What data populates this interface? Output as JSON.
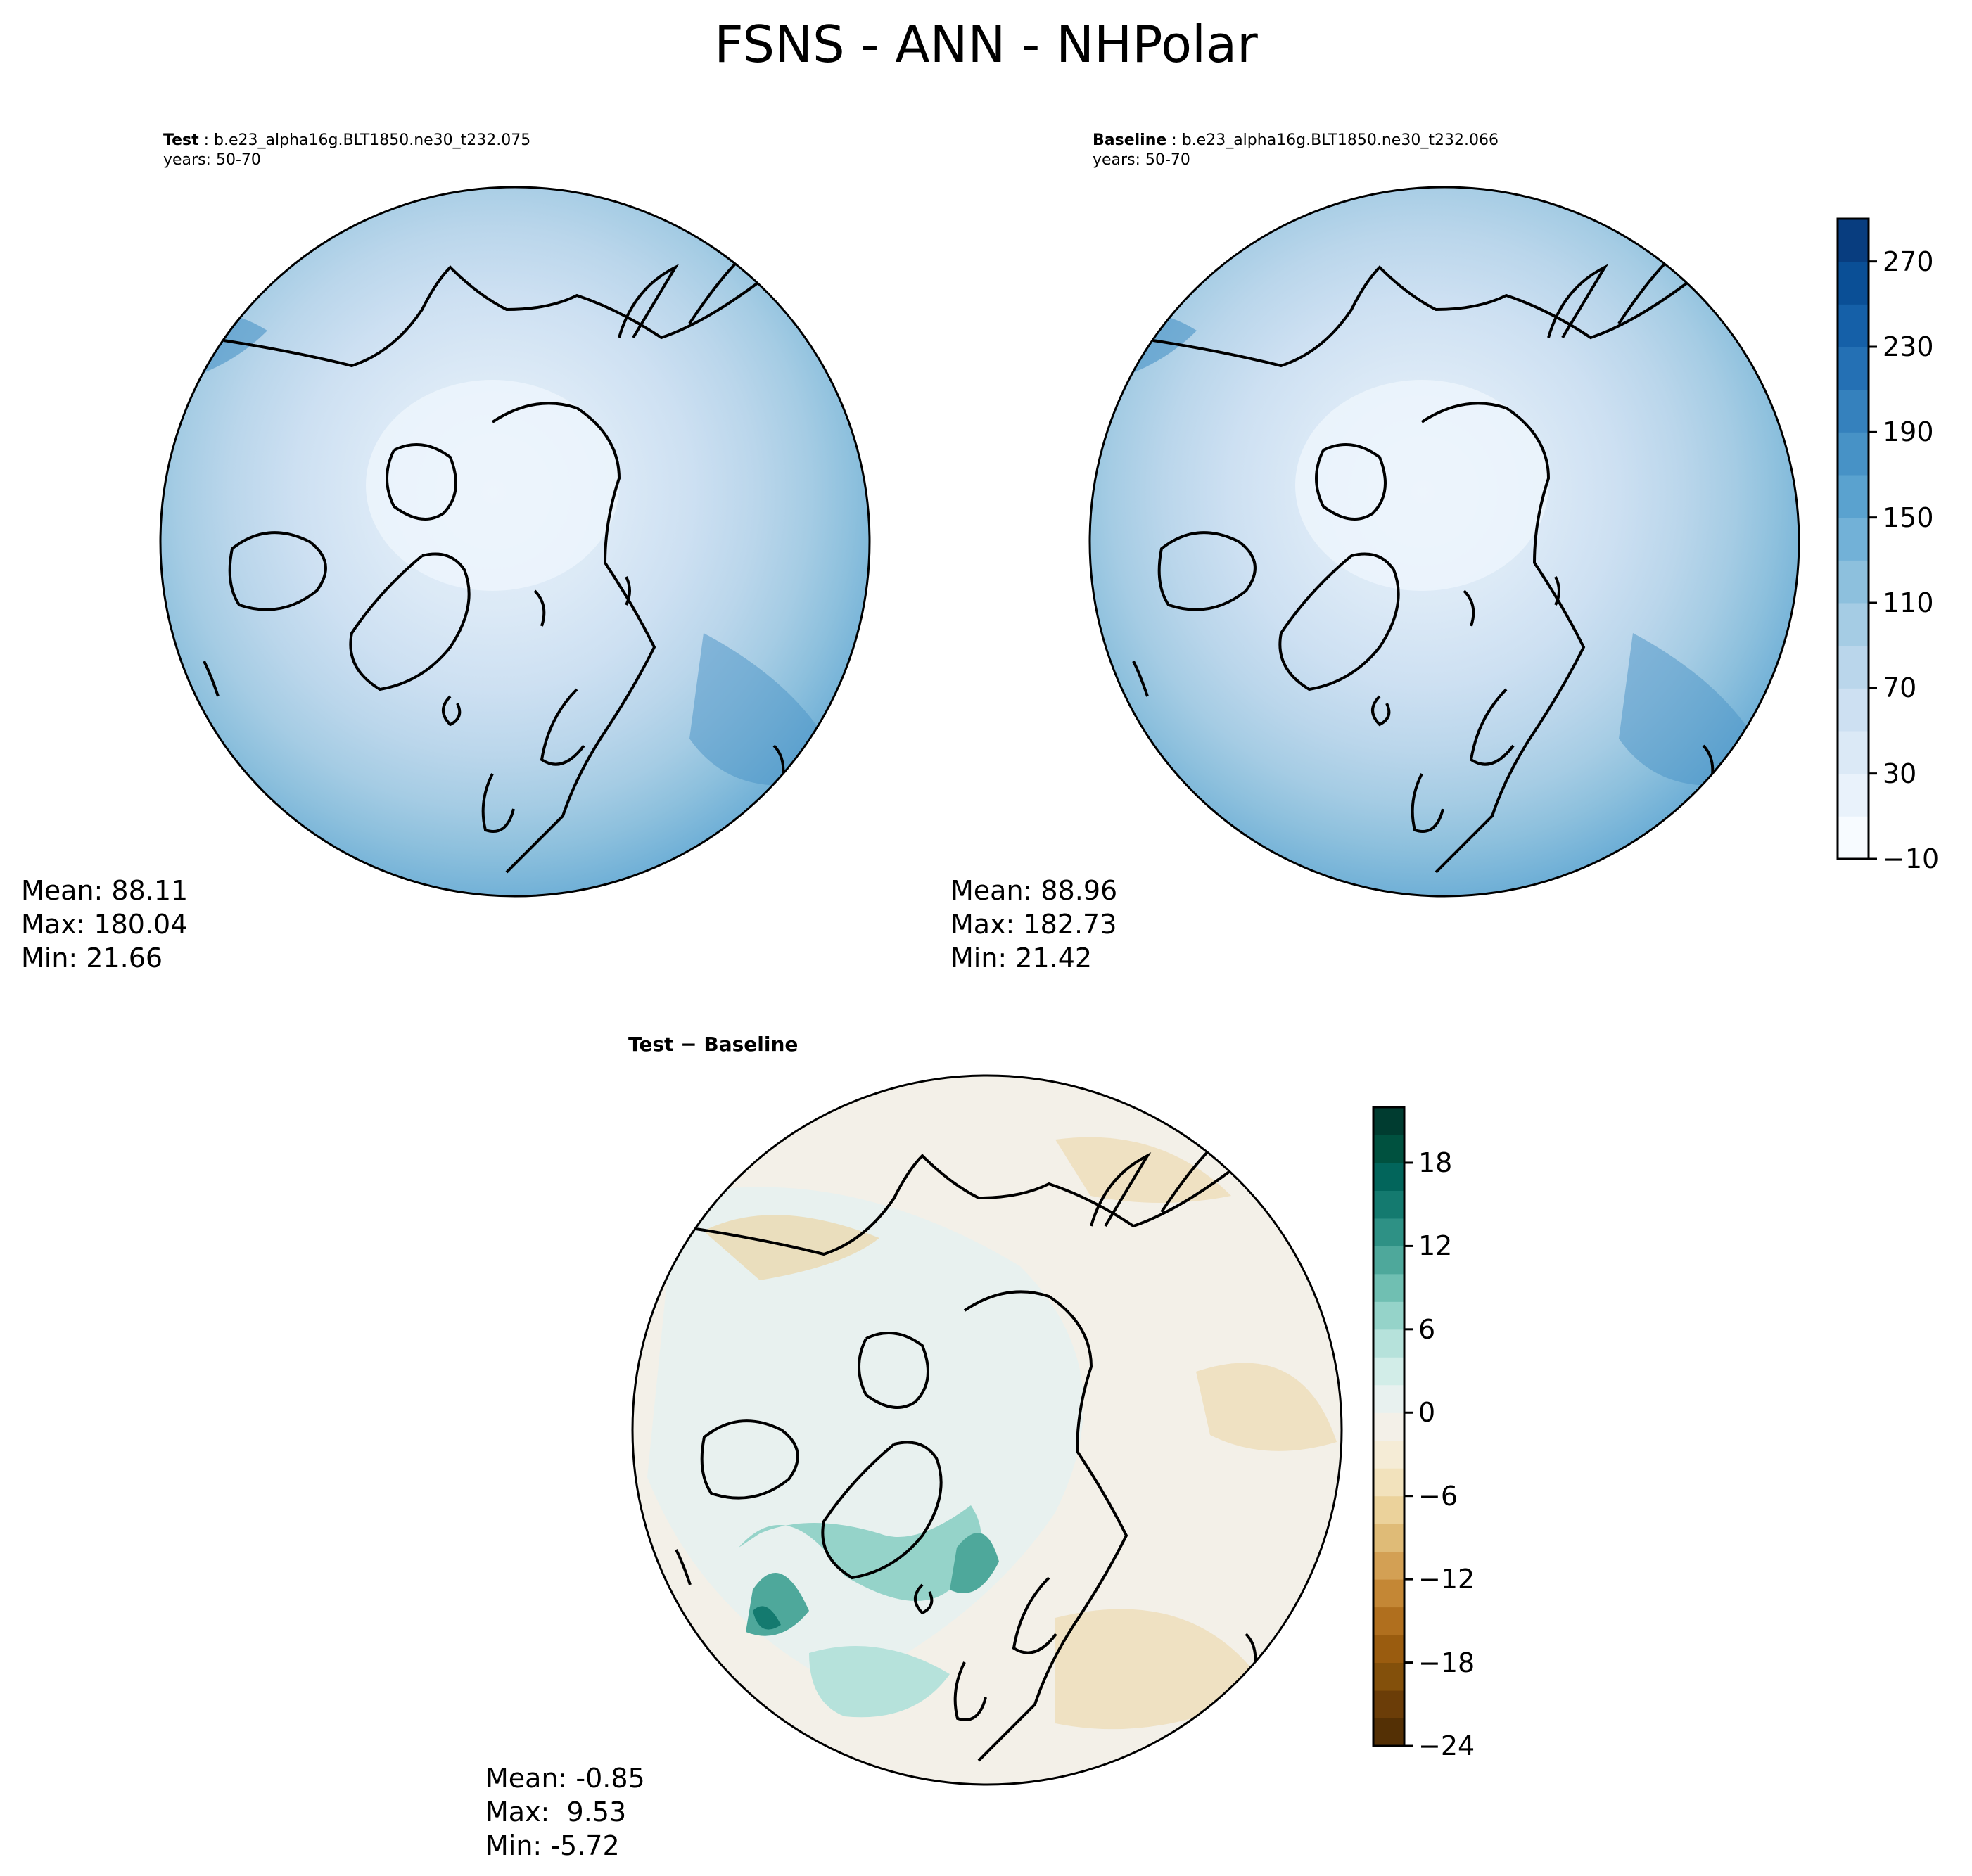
{
  "figure": {
    "title": "FSNS - ANN - NHPolar"
  },
  "panels": {
    "test": {
      "label": "Test",
      "case": "b.e23_alpha16g.BLT1850.ne30_t232.075",
      "years": "years: 50-70",
      "stats": {
        "mean": "Mean: 88.11",
        "max": "Max: 180.04",
        "min": "Min: 21.66"
      }
    },
    "baseline": {
      "label": "Baseline",
      "case": "b.e23_alpha16g.BLT1850.ne30_t232.066",
      "years": "years: 50-70",
      "stats": {
        "mean": "Mean: 88.96",
        "max": "Max: 182.73",
        "min": "Min: 21.42"
      }
    },
    "diff": {
      "title": "Test − Baseline",
      "stats": {
        "mean": "Mean: -0.85",
        "max": "Max:  9.53",
        "min": "Min: -5.72"
      }
    }
  },
  "chart_data": [
    {
      "type": "heatmap",
      "projection": "north polar stereographic",
      "title": "Test : b.e23_alpha16g.BLT1850.ne30_t232.075",
      "colormap": "Blues",
      "levels": [
        -10,
        10,
        30,
        50,
        70,
        90,
        110,
        130,
        150,
        170,
        190,
        210,
        230,
        250,
        270,
        290
      ],
      "colorbar_ticks": [
        "−10",
        "30",
        "70",
        "110",
        "150",
        "190",
        "230",
        "270"
      ],
      "mean": 88.11,
      "max": 180.04,
      "min": 21.66
    },
    {
      "type": "heatmap",
      "projection": "north polar stereographic",
      "title": "Baseline : b.e23_alpha16g.BLT1850.ne30_t232.066",
      "colormap": "Blues",
      "levels": [
        -10,
        10,
        30,
        50,
        70,
        90,
        110,
        130,
        150,
        170,
        190,
        210,
        230,
        250,
        270,
        290
      ],
      "colorbar_ticks": [
        "−10",
        "30",
        "70",
        "110",
        "150",
        "190",
        "230",
        "270"
      ],
      "mean": 88.96,
      "max": 182.73,
      "min": 21.42
    },
    {
      "type": "heatmap",
      "projection": "north polar stereographic",
      "title": "Test − Baseline",
      "colormap": "BrBG",
      "levels": [
        -24,
        -22,
        -20,
        -18,
        -16,
        -14,
        -12,
        -10,
        -8,
        -6,
        -4,
        -2,
        0,
        2,
        4,
        6,
        8,
        10,
        12,
        14,
        16,
        18,
        20,
        22
      ],
      "colorbar_ticks": [
        "−24",
        "−18",
        "−12",
        "−6",
        "0",
        "6",
        "12",
        "18"
      ],
      "mean": -0.85,
      "max": 9.53,
      "min": -5.72
    }
  ],
  "colors": {
    "blues": [
      "#f7fbff",
      "#e9f2fb",
      "#dbe9f6",
      "#cde0f2",
      "#bad6eb",
      "#a5cce4",
      "#8dc0dd",
      "#72b1d7",
      "#5aa2cf",
      "#4792c6",
      "#3581bd",
      "#2470b4",
      "#1560a8",
      "#0a4f96",
      "#083d7f"
    ],
    "brbg": [
      "#543005",
      "#6b3d08",
      "#83500b",
      "#9a5c0f",
      "#b06f1e",
      "#c48735",
      "#d3a054",
      "#dfbb77",
      "#ebd29b",
      "#f2e2bc",
      "#f5ecd6",
      "#f3f0e8",
      "#e8f1ef",
      "#d2ede8",
      "#b6e2db",
      "#95d3c9",
      "#70bfb2",
      "#4ea89b",
      "#2e9185",
      "#147a6f",
      "#02655b",
      "#00513f",
      "#003c30"
    ]
  }
}
